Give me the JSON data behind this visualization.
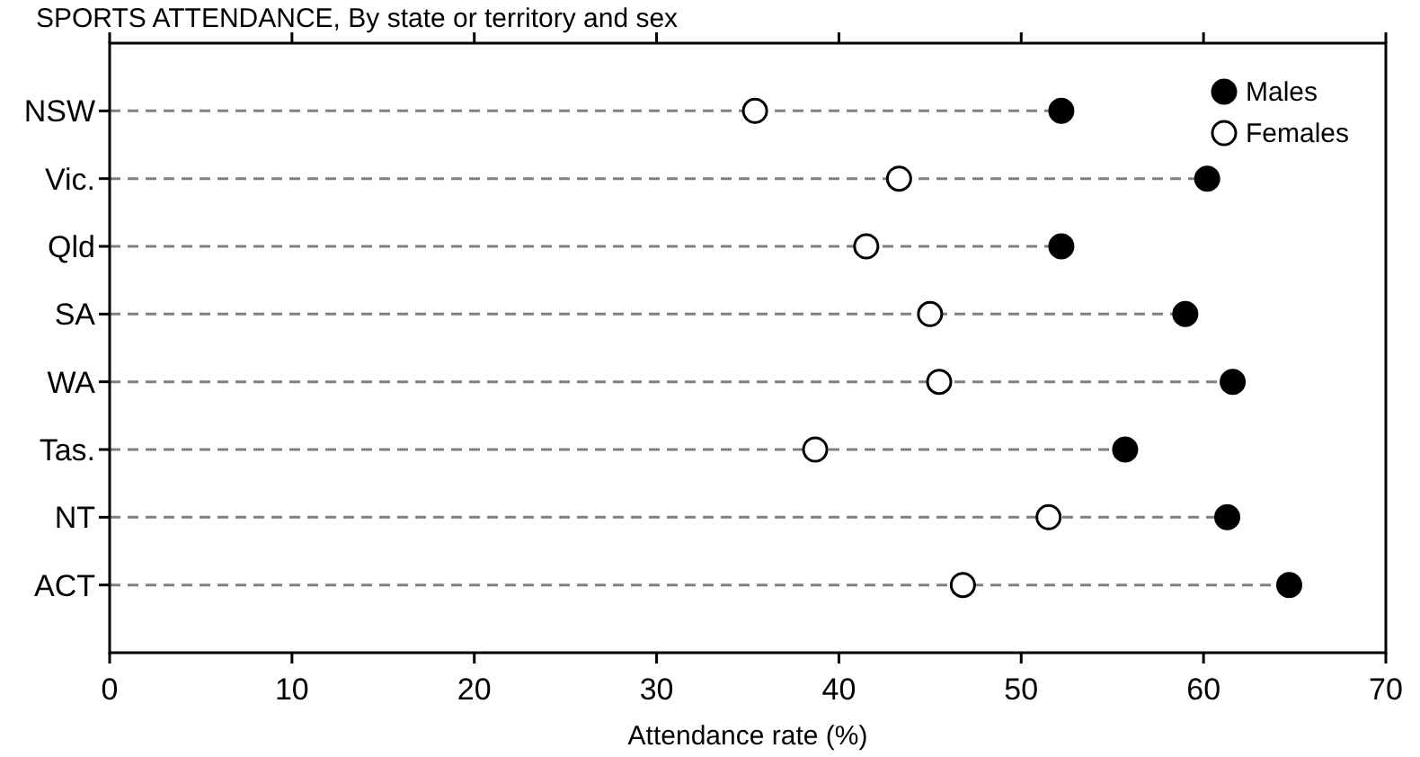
{
  "chart_data": {
    "type": "lollipop",
    "orientation": "horizontal",
    "title": "SPORTS ATTENDANCE, By state or territory and sex",
    "xlabel": "Attendance rate (%)",
    "categories": [
      "NSW",
      "Vic.",
      "Qld",
      "SA",
      "WA",
      "Tas.",
      "NT",
      "ACT"
    ],
    "series": [
      {
        "name": "Males",
        "color": "#000000",
        "values": [
          52.2,
          60.2,
          52.2,
          59.0,
          61.6,
          55.7,
          61.3,
          64.7
        ]
      },
      {
        "name": "Females",
        "color": "#ffffff",
        "values": [
          35.4,
          43.3,
          41.5,
          45.0,
          45.5,
          38.7,
          51.5,
          46.8
        ]
      }
    ],
    "xlim": [
      0,
      70
    ],
    "xticks": [
      0,
      10,
      20,
      30,
      40,
      50,
      60,
      70
    ],
    "grid": false,
    "legend": "top right",
    "marker": "circle",
    "line_style": "dashed"
  }
}
